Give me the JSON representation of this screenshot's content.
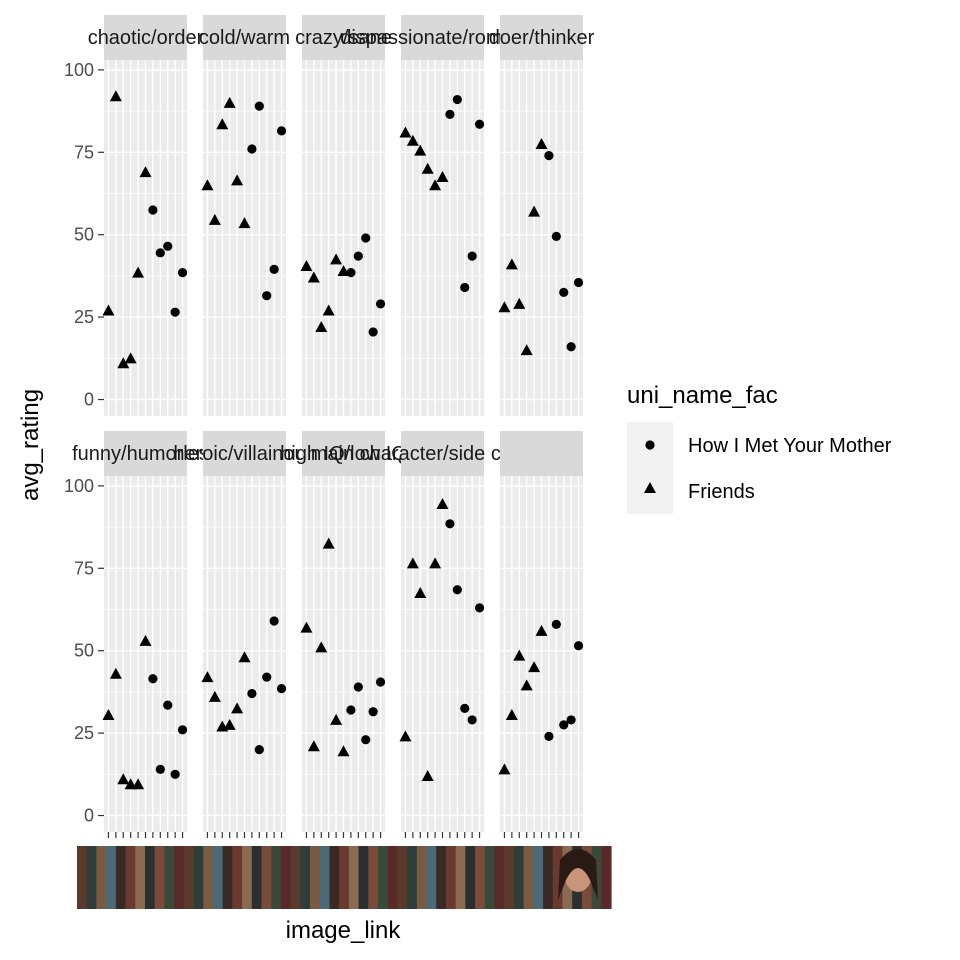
{
  "chart_data": {
    "type": "scatter",
    "facet_layout": "wrap 5 columns x 2 rows",
    "panel_background": "#ebebeb",
    "strip_background": "#d9d9d9",
    "gridline_color": "#ffffff",
    "ylabel": "avg_rating",
    "xlabel": "image_link",
    "ylim": [
      -5,
      103
    ],
    "y_ticks": [
      0,
      25,
      50,
      75,
      100
    ],
    "x_categories_count": 11,
    "x_tick_labels_note": "x tick labels are rendered as character thumbnail images",
    "legend": {
      "title": "uni_name_fac",
      "position": "right",
      "entries": [
        {
          "label": "How I Met Your Mother",
          "shape": "circle"
        },
        {
          "label": "Friends",
          "shape": "triangle"
        }
      ]
    },
    "facets": [
      {
        "strip": "chaotic/order",
        "points": [
          {
            "x": 1,
            "y": 27,
            "series": "Friends"
          },
          {
            "x": 2,
            "y": 92,
            "series": "Friends"
          },
          {
            "x": 3,
            "y": 11,
            "series": "Friends"
          },
          {
            "x": 4,
            "y": 12.5,
            "series": "Friends"
          },
          {
            "x": 5,
            "y": 38.5,
            "series": "Friends"
          },
          {
            "x": 6,
            "y": 69,
            "series": "Friends"
          },
          {
            "x": 7,
            "y": 57.5,
            "series": "How I Met Your Mother"
          },
          {
            "x": 8,
            "y": 44.5,
            "series": "How I Met Your Mother"
          },
          {
            "x": 9,
            "y": 46.5,
            "series": "How I Met Your Mother"
          },
          {
            "x": 10,
            "y": 26.5,
            "series": "How I Met Your Mother"
          },
          {
            "x": 11,
            "y": 38.5,
            "series": "How I Met Your Mother"
          }
        ]
      },
      {
        "strip": "cold/warm",
        "points": [
          {
            "x": 1,
            "y": 65,
            "series": "Friends"
          },
          {
            "x": 2,
            "y": 54.5,
            "series": "Friends"
          },
          {
            "x": 3,
            "y": 83.5,
            "series": "Friends"
          },
          {
            "x": 4,
            "y": 90,
            "series": "Friends"
          },
          {
            "x": 5,
            "y": 66.5,
            "series": "Friends"
          },
          {
            "x": 6,
            "y": 53.5,
            "series": "Friends"
          },
          {
            "x": 7,
            "y": 76,
            "series": "How I Met Your Mother"
          },
          {
            "x": 8,
            "y": 89,
            "series": "How I Met Your Mother"
          },
          {
            "x": 9,
            "y": 31.5,
            "series": "How I Met Your Mother"
          },
          {
            "x": 10,
            "y": 39.5,
            "series": "How I Met Your Mother"
          },
          {
            "x": 11,
            "y": 81.5,
            "series": "How I Met Your Mother"
          }
        ]
      },
      {
        "strip": "crazy/sane",
        "points": [
          {
            "x": 1,
            "y": 40.5,
            "series": "Friends"
          },
          {
            "x": 2,
            "y": 37,
            "series": "Friends"
          },
          {
            "x": 3,
            "y": 22,
            "series": "Friends"
          },
          {
            "x": 4,
            "y": 27,
            "series": "Friends"
          },
          {
            "x": 5,
            "y": 42.5,
            "series": "Friends"
          },
          {
            "x": 6,
            "y": 39,
            "series": "Friends"
          },
          {
            "x": 7,
            "y": 38.5,
            "series": "How I Met Your Mother"
          },
          {
            "x": 8,
            "y": 43.5,
            "series": "How I Met Your Mother"
          },
          {
            "x": 9,
            "y": 49,
            "series": "How I Met Your Mother"
          },
          {
            "x": 10,
            "y": 20.5,
            "series": "How I Met Your Mother"
          },
          {
            "x": 11,
            "y": 29,
            "series": "How I Met Your Mother"
          }
        ]
      },
      {
        "strip": "dispassionate/romantic",
        "strip_visible_text": "dispassionate/ro",
        "points": [
          {
            "x": 1,
            "y": 81,
            "series": "Friends"
          },
          {
            "x": 2,
            "y": 78.5,
            "series": "Friends"
          },
          {
            "x": 3,
            "y": 75.5,
            "series": "Friends"
          },
          {
            "x": 4,
            "y": 70,
            "series": "Friends"
          },
          {
            "x": 5,
            "y": 65,
            "series": "Friends"
          },
          {
            "x": 6,
            "y": 67.5,
            "series": "Friends"
          },
          {
            "x": 7,
            "y": 86.5,
            "series": "How I Met Your Mother"
          },
          {
            "x": 8,
            "y": 91,
            "series": "How I Met Your Mother"
          },
          {
            "x": 9,
            "y": 34,
            "series": "How I Met Your Mother"
          },
          {
            "x": 10,
            "y": 43.5,
            "series": "How I Met Your Mother"
          },
          {
            "x": 11,
            "y": 83.5,
            "series": "How I Met Your Mother"
          }
        ]
      },
      {
        "strip": "doer/thinker",
        "points": [
          {
            "x": 1,
            "y": 28,
            "series": "Friends"
          },
          {
            "x": 2,
            "y": 41,
            "series": "Friends"
          },
          {
            "x": 3,
            "y": 29,
            "series": "Friends"
          },
          {
            "x": 4,
            "y": 15,
            "series": "Friends"
          },
          {
            "x": 5,
            "y": 57,
            "series": "Friends"
          },
          {
            "x": 6,
            "y": 77.5,
            "series": "Friends"
          },
          {
            "x": 7,
            "y": 74,
            "series": "How I Met Your Mother"
          },
          {
            "x": 8,
            "y": 49.5,
            "series": "How I Met Your Mother"
          },
          {
            "x": 9,
            "y": 32.5,
            "series": "How I Met Your Mother"
          },
          {
            "x": 10,
            "y": 16,
            "series": "How I Met Your Mother"
          },
          {
            "x": 11,
            "y": 35.5,
            "series": "How I Met Your Mother"
          }
        ]
      },
      {
        "strip": "funny/humorless",
        "strip_visible_text": "funny/humorless",
        "points": [
          {
            "x": 1,
            "y": 30.5,
            "series": "Friends"
          },
          {
            "x": 2,
            "y": 43,
            "series": "Friends"
          },
          {
            "x": 3,
            "y": 11,
            "series": "Friends"
          },
          {
            "x": 4,
            "y": 9.5,
            "series": "Friends"
          },
          {
            "x": 5,
            "y": 9.5,
            "series": "Friends"
          },
          {
            "x": 6,
            "y": 53,
            "series": "Friends"
          },
          {
            "x": 7,
            "y": 41.5,
            "series": "How I Met Your Mother"
          },
          {
            "x": 8,
            "y": 14,
            "series": "How I Met Your Mother"
          },
          {
            "x": 9,
            "y": 33.5,
            "series": "How I Met Your Mother"
          },
          {
            "x": 10,
            "y": 12.5,
            "series": "How I Met Your Mother"
          },
          {
            "x": 11,
            "y": 26,
            "series": "How I Met Your Mother"
          }
        ]
      },
      {
        "strip": "heroic/villainous",
        "strip_visible_text": "heroic/villainous",
        "points": [
          {
            "x": 1,
            "y": 42,
            "series": "Friends"
          },
          {
            "x": 2,
            "y": 36,
            "series": "Friends"
          },
          {
            "x": 3,
            "y": 27,
            "series": "Friends"
          },
          {
            "x": 4,
            "y": 27.5,
            "series": "Friends"
          },
          {
            "x": 5,
            "y": 32.5,
            "series": "Friends"
          },
          {
            "x": 6,
            "y": 48,
            "series": "Friends"
          },
          {
            "x": 7,
            "y": 37,
            "series": "How I Met Your Mother"
          },
          {
            "x": 8,
            "y": 20,
            "series": "How I Met Your Mother"
          },
          {
            "x": 9,
            "y": 42,
            "series": "How I Met Your Mother"
          },
          {
            "x": 10,
            "y": 59,
            "series": "How I Met Your Mother"
          },
          {
            "x": 11,
            "y": 38.5,
            "series": "How I Met Your Mother"
          }
        ]
      },
      {
        "strip": "high IQ/low IQ",
        "strip_visible_text": "high IQ/low IQ",
        "points": [
          {
            "x": 1,
            "y": 57,
            "series": "Friends"
          },
          {
            "x": 2,
            "y": 21,
            "series": "Friends"
          },
          {
            "x": 3,
            "y": 51,
            "series": "Friends"
          },
          {
            "x": 4,
            "y": 82.5,
            "series": "Friends"
          },
          {
            "x": 5,
            "y": 29,
            "series": "Friends"
          },
          {
            "x": 6,
            "y": 19.5,
            "series": "Friends"
          },
          {
            "x": 7,
            "y": 32,
            "series": "How I Met Your Mother"
          },
          {
            "x": 8,
            "y": 39,
            "series": "How I Met Your Mother"
          },
          {
            "x": 9,
            "y": 23,
            "series": "How I Met Your Mother"
          },
          {
            "x": 10,
            "y": 31.5,
            "series": "How I Met Your Mother"
          },
          {
            "x": 11,
            "y": 40.5,
            "series": "How I Met Your Mother"
          }
        ]
      },
      {
        "strip": "main character/side character",
        "strip_visible_text": "main character/side c",
        "points": [
          {
            "x": 1,
            "y": 24,
            "series": "Friends"
          },
          {
            "x": 2,
            "y": 76.5,
            "series": "Friends"
          },
          {
            "x": 3,
            "y": 67.5,
            "series": "Friends"
          },
          {
            "x": 4,
            "y": 12,
            "series": "Friends"
          },
          {
            "x": 5,
            "y": 76.5,
            "series": "Friends"
          },
          {
            "x": 6,
            "y": 94.5,
            "series": "Friends"
          },
          {
            "x": 7,
            "y": 88.5,
            "series": "How I Met Your Mother"
          },
          {
            "x": 8,
            "y": 68.5,
            "series": "How I Met Your Mother"
          },
          {
            "x": 9,
            "y": 32.5,
            "series": "How I Met Your Mother"
          },
          {
            "x": 10,
            "y": 29,
            "series": "How I Met Your Mother"
          },
          {
            "x": 11,
            "y": 63,
            "series": "How I Met Your Mother"
          }
        ]
      },
      {
        "strip": "",
        "points": [
          {
            "x": 1,
            "y": 14,
            "series": "Friends"
          },
          {
            "x": 2,
            "y": 30.5,
            "series": "Friends"
          },
          {
            "x": 3,
            "y": 48.5,
            "series": "Friends"
          },
          {
            "x": 4,
            "y": 39.5,
            "series": "Friends"
          },
          {
            "x": 5,
            "y": 45,
            "series": "Friends"
          },
          {
            "x": 6,
            "y": 56,
            "series": "Friends"
          },
          {
            "x": 7,
            "y": 24,
            "series": "How I Met Your Mother"
          },
          {
            "x": 8,
            "y": 58,
            "series": "How I Met Your Mother"
          },
          {
            "x": 9,
            "y": 27.5,
            "series": "How I Met Your Mother"
          },
          {
            "x": 10,
            "y": 29,
            "series": "How I Met Your Mother"
          },
          {
            "x": 11,
            "y": 51.5,
            "series": "How I Met Your Mother"
          }
        ]
      }
    ]
  }
}
